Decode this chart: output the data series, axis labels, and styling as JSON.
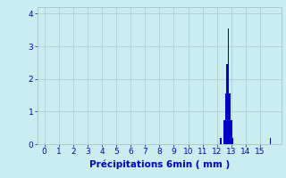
{
  "xlabel": "Précipitations 6min ( mm )",
  "xlim": [
    -0.5,
    16.5
  ],
  "ylim": [
    0,
    4.2
  ],
  "xticks": [
    0,
    1,
    2,
    3,
    4,
    5,
    6,
    7,
    8,
    9,
    10,
    11,
    12,
    13,
    14,
    15
  ],
  "yticks": [
    0,
    1,
    2,
    3,
    4
  ],
  "bar_color": "#0000cc",
  "background_color": "#c8eef0",
  "grid_color": "#a8c8cc",
  "bar_data": [
    {
      "x": 12.25,
      "height": 0.18
    },
    {
      "x": 12.5,
      "height": 0.75
    },
    {
      "x": 12.6,
      "height": 1.55
    },
    {
      "x": 12.7,
      "height": 2.45
    },
    {
      "x": 12.8,
      "height": 3.55
    },
    {
      "x": 12.9,
      "height": 1.55
    },
    {
      "x": 13.0,
      "height": 0.75
    },
    {
      "x": 13.1,
      "height": 0.18
    },
    {
      "x": 15.7,
      "height": 0.18
    }
  ],
  "bar_width": 0.1
}
